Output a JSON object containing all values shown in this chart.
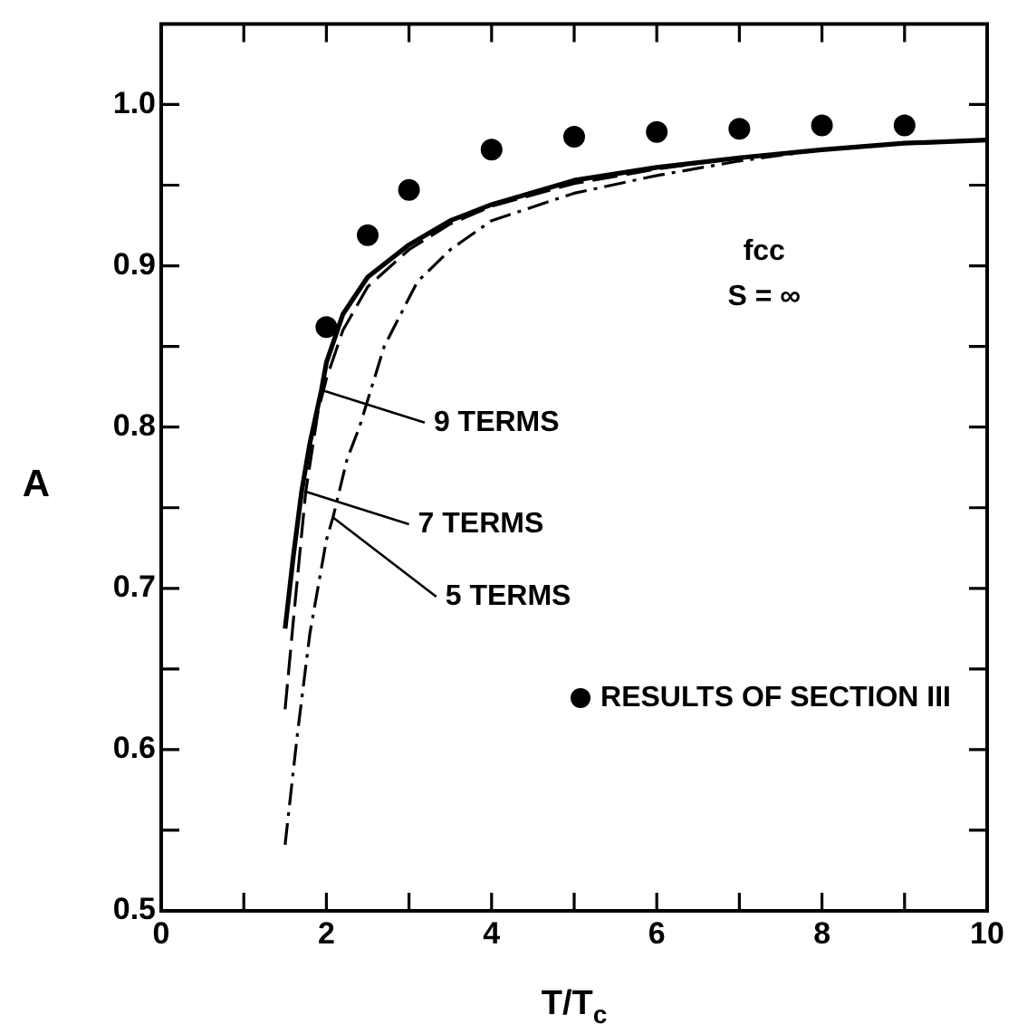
{
  "chart_data": {
    "type": "line",
    "xlabel": "T/T$_{c}$",
    "ylabel": "A",
    "xlim": [
      0,
      10
    ],
    "ylim": [
      0.5,
      1.05
    ],
    "xticks": [
      0,
      {
        "value": 1,
        "label": null
      },
      2,
      {
        "value": 3,
        "label": null
      },
      4,
      {
        "value": 5,
        "label": null
      },
      6,
      {
        "value": 7,
        "label": null
      },
      8,
      {
        "value": 9,
        "label": null
      },
      10
    ],
    "yticks": [
      0.5,
      {
        "value": 0.55,
        "label": null
      },
      0.6,
      {
        "value": 0.65,
        "label": null
      },
      0.7,
      {
        "value": 0.75,
        "label": null
      },
      0.8,
      {
        "value": 0.85,
        "label": null
      },
      0.9,
      {
        "value": 0.95,
        "label": null
      },
      {
        "value": 1,
        "label": "1.0"
      }
    ],
    "legend": "bottom right",
    "series": [
      {
        "color": "#000000",
        "line_style": "solid",
        "x": [
          1.5,
          1.6,
          1.7,
          1.8,
          1.94,
          2.0,
          2.2,
          2.5,
          3,
          3.5,
          4,
          5,
          6,
          7,
          8,
          9,
          10
        ],
        "values": [
          0.675,
          0.72,
          0.76,
          0.79,
          0.823,
          0.84,
          0.87,
          0.893,
          0.913,
          0.928,
          0.938,
          0.953,
          0.961,
          0.967,
          0.972,
          0.976,
          0.978
        ]
      },
      {
        "color": "#000000",
        "line_style": "dashed",
        "x": [
          1.5,
          1.6,
          1.75,
          1.9,
          2.0,
          2.2,
          2.5,
          3,
          3.5,
          4,
          5,
          6,
          7,
          8,
          9,
          10
        ],
        "values": [
          0.625,
          0.68,
          0.76,
          0.81,
          0.83,
          0.86,
          0.887,
          0.91,
          0.926,
          0.937,
          0.951,
          0.96,
          0.967,
          0.972,
          0.976,
          0.978
        ]
      },
      {
        "color": "#000000",
        "line_style": "dashdot",
        "x": [
          1.5,
          1.65,
          1.8,
          2.0,
          2.08,
          2.25,
          2.4,
          2.7,
          3.1,
          3.5,
          4,
          5,
          6,
          7,
          8,
          9,
          10
        ],
        "values": [
          0.541,
          0.61,
          0.672,
          0.73,
          0.744,
          0.78,
          0.8,
          0.85,
          0.89,
          0.91,
          0.928,
          0.945,
          0.956,
          0.965,
          0.972,
          0.976,
          0.978
        ]
      },
      {
        "type": "scatter",
        "name": "RESULTS OF SECTION III",
        "color": "#000000",
        "marker": "circle",
        "x": [
          2,
          2.5,
          3,
          4,
          5,
          6,
          7,
          8,
          9
        ],
        "values": [
          0.862,
          0.919,
          0.947,
          0.972,
          0.98,
          0.983,
          0.985,
          0.987,
          0.987
        ]
      }
    ],
    "annotations": [
      "fcc",
      "S = ∞",
      {
        "text": "9 TERMS",
        "x": 1.94,
        "y": 0.823
      },
      {
        "text": "7 TERMS",
        "x": 1.75,
        "y": 0.76
      },
      {
        "text": "5 TERMS",
        "x": 2.08,
        "y": 0.744
      }
    ]
  }
}
